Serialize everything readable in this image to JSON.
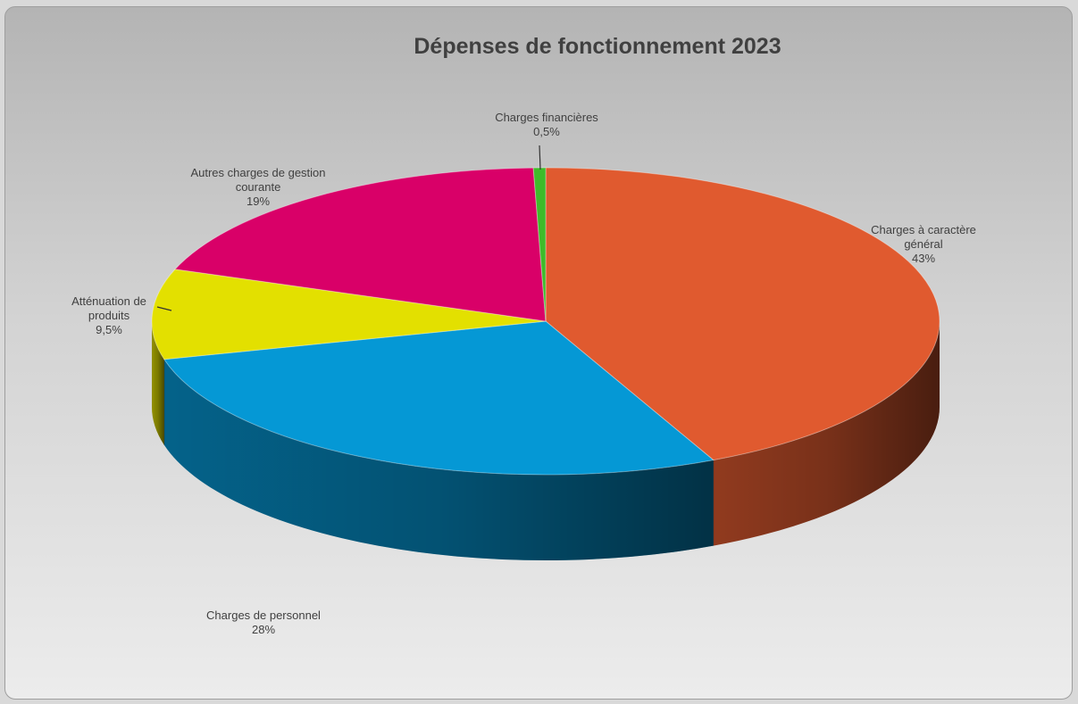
{
  "chart_data": {
    "type": "pie",
    "title": "Dépenses de fonctionnement 2023",
    "three_d": true,
    "start_angle_deg": 0,
    "direction": "clockwise",
    "slices": [
      {
        "label_lines": [
          "Charges à caractère",
          "général"
        ],
        "value_label": "43%",
        "value": 43,
        "color": "#e05a2f"
      },
      {
        "label_lines": [
          "Charges de personnel"
        ],
        "value_label": "28%",
        "value": 28,
        "color": "#0598d5"
      },
      {
        "label_lines": [
          "Atténuation de",
          "produits"
        ],
        "value_label": "9,5%",
        "value": 9.5,
        "color": "#e3e000"
      },
      {
        "label_lines": [
          "Autres charges de gestion",
          "courante"
        ],
        "value_label": "19%",
        "value": 19,
        "color": "#d90068"
      },
      {
        "label_lines": [
          "Charges financières"
        ],
        "value_label": "0,5%",
        "value": 0.5,
        "color": "#3fbb2a"
      }
    ]
  }
}
